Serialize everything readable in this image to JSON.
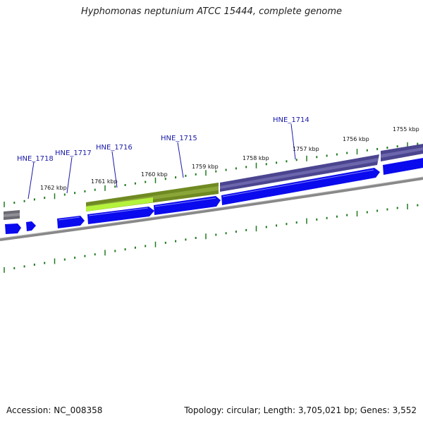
{
  "title": "Hyphomonas neptunium ATCC 15444, complete genome",
  "accession": "Accession: NC_008358",
  "summary": "Topology: circular; Length: 3,705,021 bp; Genes: 3,552",
  "kbp_labels": [
    "1755 kbp",
    "1756 kbp",
    "1757 kbp",
    "1758 kbp",
    "1759 kbp",
    "1760 kbp",
    "1761 kbp",
    "1762 kbp"
  ],
  "gene_labels": [
    "HNE_1714",
    "HNE_1715",
    "HNE_1716",
    "HNE_1717",
    "HNE_1718"
  ],
  "colors": {
    "gene_blue": "#0a0aee",
    "purple_feature": "#4b4590",
    "olive_feature": "#6f8a22",
    "lime_feature": "#b4f23c",
    "gray_feature": "#6c6a72",
    "backbone": "#888888",
    "tick_green": "#1f7a1f",
    "label_blue": "#1a1aa8"
  }
}
